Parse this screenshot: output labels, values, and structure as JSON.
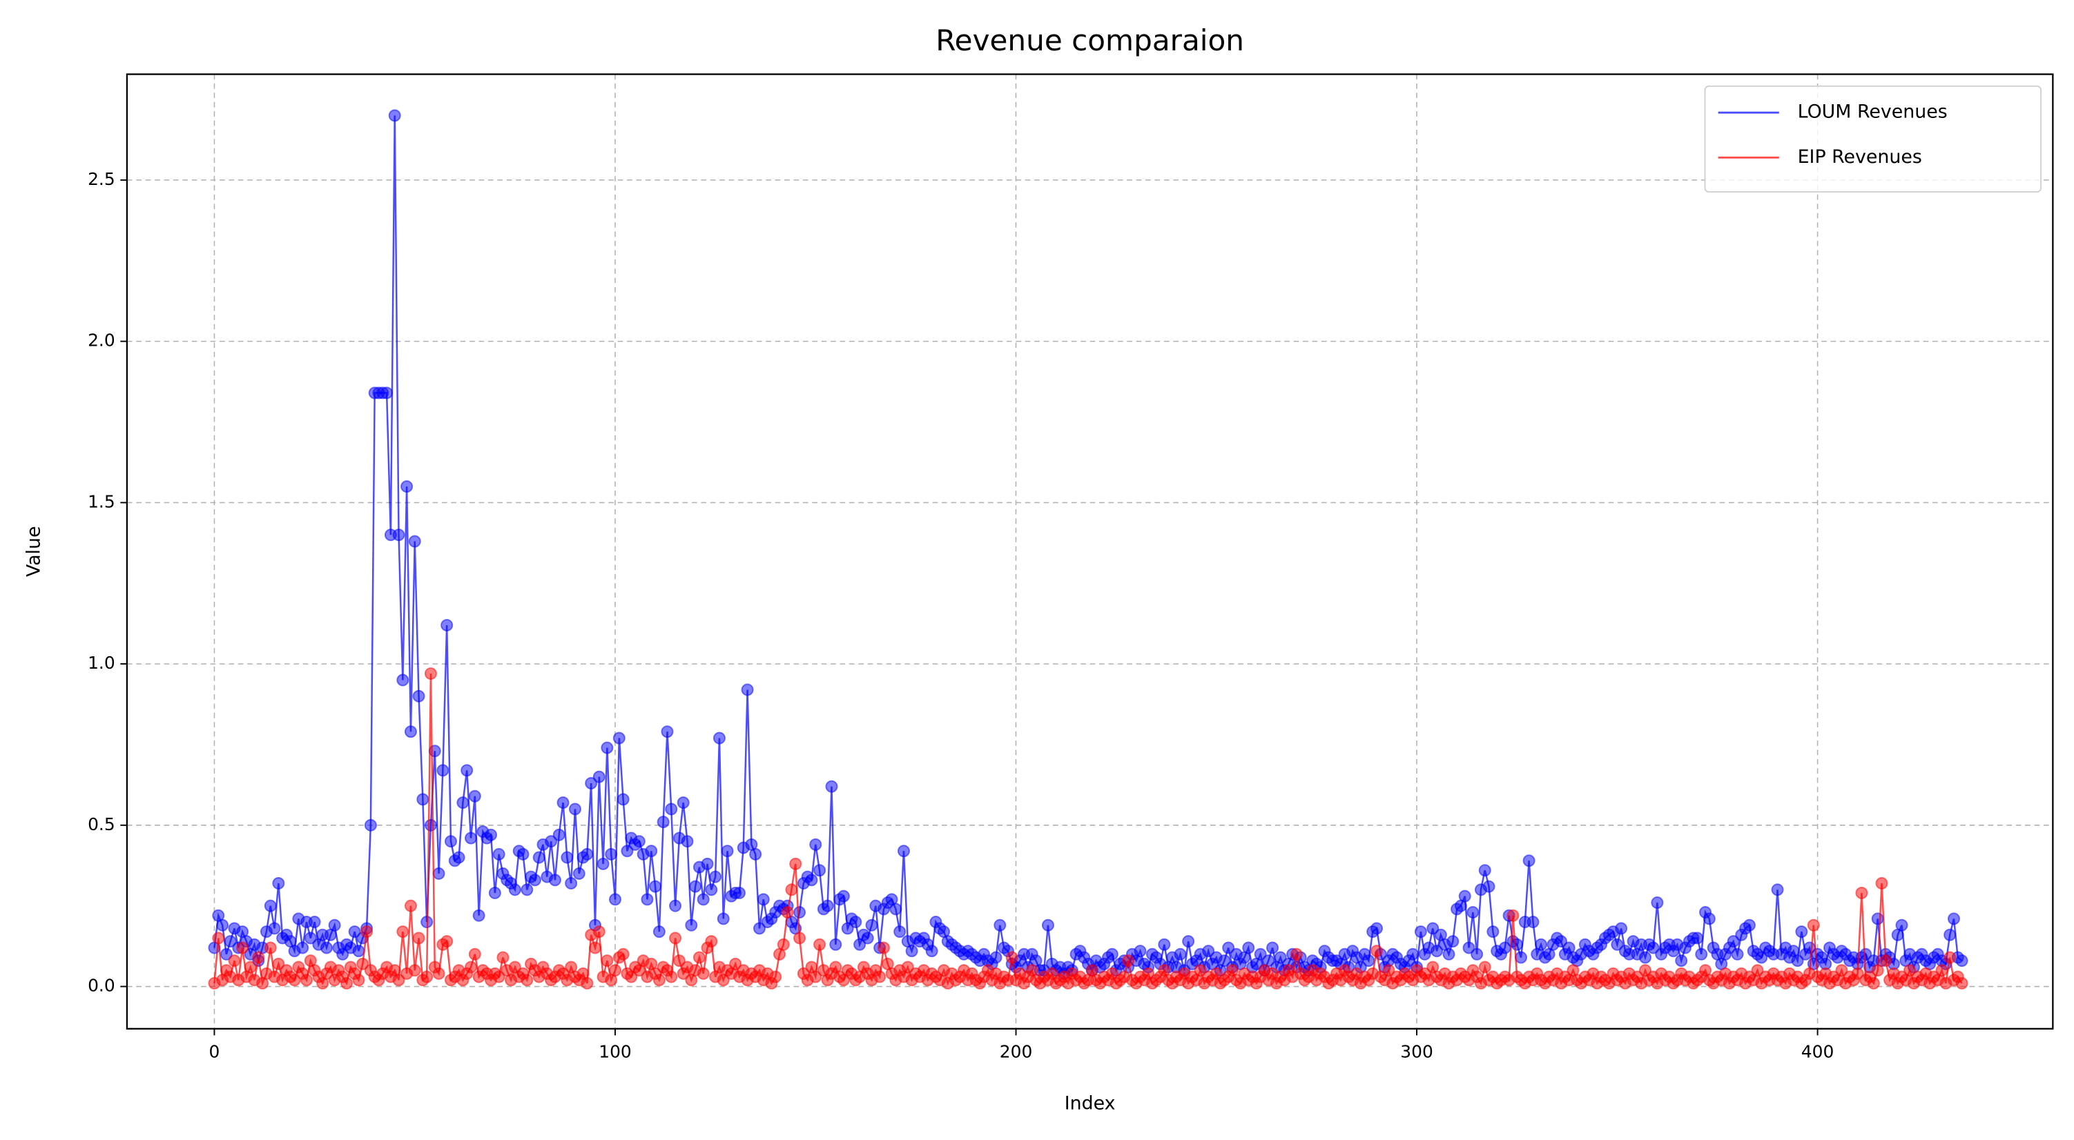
{
  "chart_data": {
    "type": "line",
    "title": "Revenue comparaion",
    "xlabel": "Index",
    "ylabel": "Value",
    "x": [
      0,
      1,
      2,
      3,
      4,
      5,
      6,
      7,
      8,
      9,
      10,
      11,
      12,
      13,
      14,
      15,
      16,
      17,
      18,
      19,
      20,
      21,
      22,
      23,
      24,
      25,
      26,
      27,
      28,
      29,
      30,
      31,
      32,
      33,
      34,
      35,
      36,
      37,
      38,
      39,
      40,
      41,
      42,
      43,
      44,
      45,
      46,
      47,
      48,
      49,
      50,
      51,
      52,
      53,
      54,
      55,
      56,
      57,
      58,
      59,
      60,
      61,
      62,
      63,
      64,
      65,
      66,
      67,
      68,
      69,
      70,
      71,
      72,
      73,
      74,
      75,
      76,
      77,
      78,
      79,
      80,
      81,
      82,
      83,
      84,
      85,
      86,
      87,
      88,
      89,
      90,
      91,
      92,
      93,
      94,
      95,
      96,
      97,
      98,
      99,
      100,
      101,
      102,
      103,
      104,
      105,
      106,
      107,
      108,
      109,
      110,
      111,
      112,
      113,
      114,
      115,
      116,
      117,
      118,
      119,
      120,
      121,
      122,
      123,
      124,
      125,
      126,
      127,
      128,
      129,
      130,
      131,
      132,
      133,
      134,
      135,
      136,
      137,
      138,
      139,
      140,
      141,
      142,
      143,
      144,
      145,
      146,
      147,
      148,
      149,
      150,
      151,
      152,
      153,
      154,
      155,
      156,
      157,
      158,
      159,
      160,
      161,
      162,
      163,
      164,
      165,
      166,
      167,
      168,
      169,
      170,
      171,
      172,
      173,
      174,
      175,
      176,
      177,
      178,
      179,
      180,
      181,
      182,
      183,
      184,
      185,
      186,
      187,
      188,
      189,
      190,
      191,
      192,
      193,
      194,
      195,
      196,
      197,
      198,
      199,
      200,
      201,
      202,
      203,
      204,
      205,
      206,
      207,
      208,
      209,
      210,
      211,
      212,
      213,
      214,
      215,
      216,
      217,
      218,
      219,
      220,
      221,
      222,
      223,
      224,
      225,
      226,
      227,
      228,
      229,
      230,
      231,
      232,
      233,
      234,
      235,
      236,
      237,
      238,
      239,
      240,
      241,
      242,
      243,
      244,
      245,
      246,
      247,
      248,
      249,
      250,
      251,
      252,
      253,
      254,
      255,
      256,
      257,
      258,
      259,
      260,
      261,
      262,
      263,
      264,
      265,
      266,
      267,
      268,
      269,
      270,
      271,
      272,
      273,
      274,
      275,
      276,
      277,
      278,
      279,
      280,
      281,
      282,
      283,
      284,
      285,
      286,
      287,
      288,
      289,
      290,
      291,
      292,
      293,
      294,
      295,
      296,
      297,
      298,
      299,
      300,
      301,
      302,
      303,
      304,
      305,
      306,
      307,
      308,
      309,
      310,
      311,
      312,
      313,
      314,
      315,
      316,
      317,
      318,
      319,
      320,
      321,
      322,
      323,
      324,
      325,
      326,
      327,
      328,
      329,
      330,
      331,
      332,
      333,
      334,
      335,
      336,
      337,
      338,
      339,
      340,
      341,
      342,
      343,
      344,
      345,
      346,
      347,
      348,
      349,
      350,
      351,
      352,
      353,
      354,
      355,
      356,
      357,
      358,
      359,
      360,
      361,
      362,
      363,
      364,
      365,
      366,
      367,
      368,
      369,
      370,
      371,
      372,
      373,
      374,
      375,
      376,
      377,
      378,
      379,
      380,
      381,
      382,
      383,
      384,
      385,
      386,
      387,
      388,
      389,
      390,
      391,
      392,
      393,
      394,
      395,
      396,
      397,
      398,
      399,
      400,
      401,
      402,
      403,
      404,
      405,
      406,
      407,
      408,
      409,
      410,
      411,
      412,
      413,
      414,
      415,
      416,
      417,
      418,
      419,
      420,
      421,
      422,
      423,
      424,
      425,
      426,
      427,
      428,
      429,
      430,
      431,
      432,
      433,
      434,
      435,
      436
    ],
    "series": [
      {
        "name": "LOUM Revenues",
        "color": "#0000ff",
        "values": [
          0.12,
          0.22,
          0.19,
          0.1,
          0.14,
          0.18,
          0.12,
          0.17,
          0.14,
          0.1,
          0.13,
          0.08,
          0.12,
          0.17,
          0.25,
          0.18,
          0.32,
          0.15,
          0.16,
          0.14,
          0.11,
          0.21,
          0.12,
          0.2,
          0.15,
          0.2,
          0.13,
          0.16,
          0.12,
          0.16,
          0.19,
          0.12,
          0.1,
          0.13,
          0.12,
          0.17,
          0.11,
          0.15,
          0.18,
          0.5,
          1.84,
          1.84,
          1.84,
          1.84,
          1.4,
          2.7,
          1.4,
          0.95,
          1.55,
          0.79,
          1.38,
          0.9,
          0.58,
          0.2,
          0.5,
          0.73,
          0.35,
          0.67,
          1.12,
          0.45,
          0.39,
          0.4,
          0.57,
          0.67,
          0.46,
          0.59,
          0.22,
          0.48,
          0.46,
          0.47,
          0.29,
          0.41,
          0.35,
          0.33,
          0.32,
          0.3,
          0.42,
          0.41,
          0.3,
          0.34,
          0.33,
          0.4,
          0.44,
          0.34,
          0.45,
          0.33,
          0.47,
          0.57,
          0.4,
          0.32,
          0.55,
          0.35,
          0.4,
          0.41,
          0.63,
          0.19,
          0.65,
          0.38,
          0.74,
          0.41,
          0.27,
          0.77,
          0.58,
          0.42,
          0.46,
          0.44,
          0.45,
          0.41,
          0.27,
          0.42,
          0.31,
          0.17,
          0.51,
          0.79,
          0.55,
          0.25,
          0.46,
          0.57,
          0.45,
          0.19,
          0.31,
          0.37,
          0.27,
          0.38,
          0.3,
          0.34,
          0.77,
          0.21,
          0.42,
          0.28,
          0.29,
          0.29,
          0.43,
          0.92,
          0.44,
          0.41,
          0.18,
          0.27,
          0.2,
          0.21,
          0.23,
          0.25,
          0.24,
          0.25,
          0.2,
          0.18,
          0.23,
          0.32,
          0.34,
          0.33,
          0.44,
          0.36,
          0.24,
          0.25,
          0.62,
          0.13,
          0.27,
          0.28,
          0.18,
          0.21,
          0.2,
          0.13,
          0.16,
          0.15,
          0.19,
          0.25,
          0.12,
          0.24,
          0.26,
          0.27,
          0.24,
          0.17,
          0.42,
          0.14,
          0.11,
          0.15,
          0.14,
          0.15,
          0.13,
          0.11,
          0.2,
          0.18,
          0.17,
          0.14,
          0.13,
          0.12,
          0.11,
          0.1,
          0.11,
          0.1,
          0.09,
          0.08,
          0.1,
          0.08,
          0.07,
          0.09,
          0.19,
          0.12,
          0.11,
          0.07,
          0.06,
          0.08,
          0.1,
          0.06,
          0.1,
          0.08,
          0.05,
          0.05,
          0.19,
          0.07,
          0.05,
          0.06,
          0.04,
          0.06,
          0.05,
          0.1,
          0.11,
          0.09,
          0.07,
          0.05,
          0.08,
          0.06,
          0.07,
          0.09,
          0.1,
          0.05,
          0.07,
          0.08,
          0.06,
          0.1,
          0.08,
          0.11,
          0.07,
          0.06,
          0.1,
          0.09,
          0.07,
          0.13,
          0.06,
          0.09,
          0.06,
          0.1,
          0.05,
          0.14,
          0.07,
          0.08,
          0.1,
          0.06,
          0.11,
          0.07,
          0.09,
          0.05,
          0.08,
          0.12,
          0.06,
          0.1,
          0.07,
          0.09,
          0.12,
          0.06,
          0.07,
          0.1,
          0.05,
          0.08,
          0.12,
          0.06,
          0.09,
          0.05,
          0.07,
          0.1,
          0.06,
          0.09,
          0.06,
          0.05,
          0.08,
          0.07,
          0.06,
          0.11,
          0.09,
          0.08,
          0.08,
          0.07,
          0.1,
          0.06,
          0.11,
          0.09,
          0.06,
          0.1,
          0.08,
          0.17,
          0.18,
          0.1,
          0.06,
          0.08,
          0.1,
          0.09,
          0.07,
          0.06,
          0.08,
          0.1,
          0.06,
          0.17,
          0.1,
          0.12,
          0.18,
          0.11,
          0.16,
          0.13,
          0.1,
          0.14,
          0.24,
          0.25,
          0.28,
          0.12,
          0.23,
          0.1,
          0.3,
          0.36,
          0.31,
          0.17,
          0.11,
          0.1,
          0.12,
          0.22,
          0.14,
          0.13,
          0.09,
          0.2,
          0.39,
          0.2,
          0.1,
          0.13,
          0.09,
          0.1,
          0.13,
          0.15,
          0.14,
          0.1,
          0.12,
          0.09,
          0.08,
          0.1,
          0.13,
          0.11,
          0.1,
          0.12,
          0.13,
          0.15,
          0.16,
          0.17,
          0.13,
          0.18,
          0.11,
          0.1,
          0.14,
          0.1,
          0.13,
          0.09,
          0.13,
          0.12,
          0.26,
          0.1,
          0.12,
          0.13,
          0.11,
          0.13,
          0.08,
          0.12,
          0.14,
          0.15,
          0.15,
          0.1,
          0.23,
          0.21,
          0.12,
          0.1,
          0.07,
          0.1,
          0.12,
          0.14,
          0.1,
          0.16,
          0.18,
          0.19,
          0.11,
          0.1,
          0.09,
          0.12,
          0.11,
          0.1,
          0.3,
          0.1,
          0.12,
          0.09,
          0.11,
          0.08,
          0.17,
          0.1,
          0.12,
          0.07,
          0.1,
          0.09,
          0.07,
          0.12,
          0.1,
          0.09,
          0.11,
          0.1,
          0.08,
          0.09,
          0.07,
          0.09,
          0.1,
          0.06,
          0.08,
          0.21,
          0.08,
          0.1,
          0.09,
          0.07,
          0.16,
          0.19,
          0.08,
          0.1,
          0.06,
          0.09,
          0.1,
          0.08,
          0.07,
          0.09,
          0.1,
          0.08,
          0.07,
          0.16,
          0.21,
          0.09,
          0.08
        ]
      },
      {
        "name": "EIP Revenues",
        "color": "#ff0000",
        "values": [
          0.01,
          0.15,
          0.02,
          0.05,
          0.03,
          0.08,
          0.02,
          0.12,
          0.03,
          0.06,
          0.02,
          0.09,
          0.01,
          0.04,
          0.12,
          0.03,
          0.07,
          0.02,
          0.05,
          0.03,
          0.02,
          0.06,
          0.04,
          0.02,
          0.08,
          0.05,
          0.03,
          0.01,
          0.04,
          0.06,
          0.02,
          0.05,
          0.03,
          0.01,
          0.06,
          0.04,
          0.02,
          0.07,
          0.17,
          0.05,
          0.03,
          0.02,
          0.04,
          0.06,
          0.03,
          0.05,
          0.02,
          0.17,
          0.04,
          0.25,
          0.05,
          0.15,
          0.02,
          0.03,
          0.97,
          0.06,
          0.04,
          0.13,
          0.14,
          0.02,
          0.03,
          0.05,
          0.02,
          0.04,
          0.06,
          0.1,
          0.03,
          0.05,
          0.04,
          0.02,
          0.04,
          0.03,
          0.09,
          0.05,
          0.02,
          0.06,
          0.03,
          0.04,
          0.02,
          0.07,
          0.05,
          0.03,
          0.06,
          0.04,
          0.02,
          0.03,
          0.05,
          0.04,
          0.02,
          0.06,
          0.03,
          0.02,
          0.04,
          0.01,
          0.16,
          0.12,
          0.17,
          0.03,
          0.08,
          0.02,
          0.05,
          0.09,
          0.1,
          0.04,
          0.03,
          0.06,
          0.05,
          0.08,
          0.03,
          0.07,
          0.04,
          0.02,
          0.06,
          0.05,
          0.03,
          0.15,
          0.08,
          0.04,
          0.06,
          0.02,
          0.05,
          0.09,
          0.04,
          0.12,
          0.14,
          0.03,
          0.06,
          0.02,
          0.05,
          0.04,
          0.07,
          0.03,
          0.05,
          0.02,
          0.04,
          0.03,
          0.05,
          0.02,
          0.04,
          0.01,
          0.03,
          0.1,
          0.13,
          0.23,
          0.3,
          0.38,
          0.15,
          0.04,
          0.02,
          0.06,
          0.03,
          0.13,
          0.05,
          0.02,
          0.04,
          0.06,
          0.03,
          0.02,
          0.05,
          0.04,
          0.02,
          0.03,
          0.06,
          0.04,
          0.02,
          0.05,
          0.03,
          0.12,
          0.07,
          0.04,
          0.02,
          0.05,
          0.03,
          0.06,
          0.02,
          0.04,
          0.03,
          0.05,
          0.02,
          0.04,
          0.03,
          0.02,
          0.05,
          0.01,
          0.04,
          0.02,
          0.03,
          0.05,
          0.02,
          0.04,
          0.02,
          0.01,
          0.03,
          0.05,
          0.02,
          0.04,
          0.01,
          0.03,
          0.02,
          0.09,
          0.02,
          0.04,
          0.01,
          0.03,
          0.05,
          0.02,
          0.01,
          0.03,
          0.02,
          0.04,
          0.01,
          0.02,
          0.03,
          0.01,
          0.04,
          0.02,
          0.03,
          0.01,
          0.02,
          0.05,
          0.02,
          0.01,
          0.03,
          0.02,
          0.04,
          0.01,
          0.02,
          0.03,
          0.08,
          0.02,
          0.01,
          0.03,
          0.02,
          0.04,
          0.01,
          0.02,
          0.03,
          0.05,
          0.02,
          0.01,
          0.03,
          0.02,
          0.04,
          0.01,
          0.03,
          0.02,
          0.05,
          0.01,
          0.03,
          0.02,
          0.04,
          0.01,
          0.02,
          0.03,
          0.05,
          0.02,
          0.01,
          0.04,
          0.02,
          0.03,
          0.01,
          0.03,
          0.05,
          0.02,
          0.04,
          0.01,
          0.03,
          0.02,
          0.05,
          0.03,
          0.1,
          0.04,
          0.02,
          0.03,
          0.05,
          0.02,
          0.04,
          0.03,
          0.01,
          0.02,
          0.04,
          0.02,
          0.05,
          0.03,
          0.02,
          0.04,
          0.01,
          0.03,
          0.02,
          0.04,
          0.11,
          0.03,
          0.02,
          0.05,
          0.01,
          0.03,
          0.02,
          0.04,
          0.03,
          0.02,
          0.05,
          0.03,
          0.04,
          0.02,
          0.06,
          0.03,
          0.02,
          0.04,
          0.01,
          0.03,
          0.02,
          0.04,
          0.03,
          0.02,
          0.05,
          0.03,
          0.01,
          0.06,
          0.02,
          0.03,
          0.01,
          0.02,
          0.03,
          0.02,
          0.22,
          0.03,
          0.02,
          0.01,
          0.03,
          0.02,
          0.04,
          0.02,
          0.01,
          0.03,
          0.02,
          0.04,
          0.01,
          0.03,
          0.02,
          0.05,
          0.02,
          0.01,
          0.03,
          0.02,
          0.04,
          0.01,
          0.03,
          0.02,
          0.01,
          0.04,
          0.02,
          0.03,
          0.01,
          0.04,
          0.02,
          0.03,
          0.01,
          0.05,
          0.02,
          0.03,
          0.01,
          0.04,
          0.02,
          0.03,
          0.01,
          0.02,
          0.04,
          0.02,
          0.03,
          0.01,
          0.02,
          0.03,
          0.05,
          0.02,
          0.01,
          0.03,
          0.02,
          0.04,
          0.01,
          0.03,
          0.02,
          0.04,
          0.01,
          0.03,
          0.02,
          0.05,
          0.01,
          0.03,
          0.02,
          0.04,
          0.02,
          0.03,
          0.01,
          0.04,
          0.02,
          0.03,
          0.01,
          0.02,
          0.04,
          0.19,
          0.03,
          0.02,
          0.04,
          0.01,
          0.03,
          0.02,
          0.05,
          0.01,
          0.03,
          0.02,
          0.04,
          0.29,
          0.02,
          0.03,
          0.01,
          0.05,
          0.32,
          0.08,
          0.02,
          0.04,
          0.01,
          0.03,
          0.02,
          0.05,
          0.01,
          0.03,
          0.02,
          0.04,
          0.01,
          0.03,
          0.02,
          0.05,
          0.01,
          0.09,
          0.02,
          0.03,
          0.01
        ]
      }
    ],
    "xlim": [
      -21.8,
      458.7
    ],
    "ylim": [
      -0.131,
      2.828
    ],
    "xticks": [
      0,
      100,
      200,
      300,
      400
    ],
    "yticks": [
      {
        "value": 0,
        "label": "0.0"
      },
      0.5,
      {
        "value": 1,
        "label": "1.0"
      },
      1.5,
      {
        "value": 2,
        "label": "2.0"
      },
      2.5
    ],
    "grid": true,
    "legend": "upper right"
  }
}
